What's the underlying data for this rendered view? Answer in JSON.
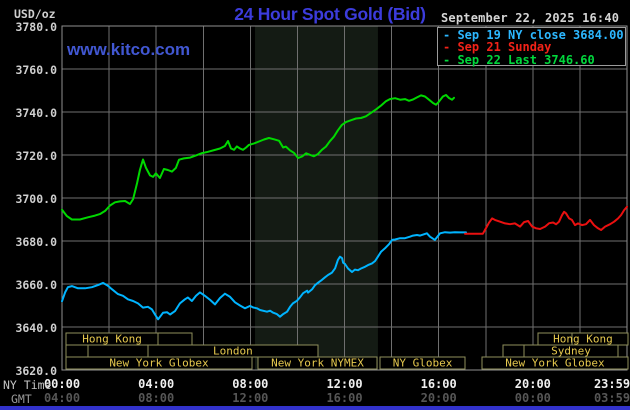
{
  "header": {
    "unit_label": "USD/oz",
    "title": "24 Hour Spot Gold (Bid)",
    "datetime": "September 22, 2025 16:40",
    "watermark": "www.kitco.com"
  },
  "legend": [
    {
      "marker": "-",
      "label": " Sep 19 NY close 3684.00",
      "color": "#2cb7ff"
    },
    {
      "marker": "-",
      "label": " Sep 21 Sunday",
      "color": "#f22218"
    },
    {
      "marker": "-",
      "label": " Sep 22 Last 3746.60",
      "color": "#00d83c"
    }
  ],
  "axes": {
    "ny_label": "NY Time",
    "gmt_label": "GMT",
    "y_ticks": [
      {
        "label": "3780.0",
        "value": 3780
      },
      {
        "label": "3760.0",
        "value": 3760
      },
      {
        "label": "3740.0",
        "value": 3740
      },
      {
        "label": "3720.0",
        "value": 3720
      },
      {
        "label": "3700.0",
        "value": 3700
      },
      {
        "label": "3680.0",
        "value": 3680
      },
      {
        "label": "3660.0",
        "value": 3660
      },
      {
        "label": "3640.0",
        "value": 3640
      },
      {
        "label": "3620.0",
        "value": 3620
      }
    ],
    "ny_ticks": [
      {
        "label": "00:00",
        "hour": 0
      },
      {
        "label": "04:00",
        "hour": 4
      },
      {
        "label": "08:00",
        "hour": 8
      },
      {
        "label": "12:00",
        "hour": 12
      },
      {
        "label": "16:00",
        "hour": 16
      },
      {
        "label": "20:00",
        "hour": 20
      },
      {
        "label": "23:59",
        "hour": 23.98
      }
    ],
    "gmt_ticks": [
      {
        "label": "04:00",
        "hour": 0
      },
      {
        "label": "08:00",
        "hour": 4
      },
      {
        "label": "12:00",
        "hour": 8
      },
      {
        "label": "16:00",
        "hour": 12
      },
      {
        "label": "20:00",
        "hour": 16
      },
      {
        "label": "00:00",
        "hour": 20
      },
      {
        "label": "03:59",
        "hour": 23.98
      }
    ]
  },
  "sessions": [
    {
      "row": 0,
      "label": "Hong Kong",
      "h0": 0.17,
      "h1": 4.08
    },
    {
      "row": 0,
      "label": "",
      "h0": 4.08,
      "h1": 5.52
    },
    {
      "row": 0,
      "label": "Hong Kong",
      "h0": 20.22,
      "h1": 24.04,
      "divider": 21.66
    },
    {
      "row": 1,
      "label": "",
      "h0": 0.17,
      "h1": 1.1
    },
    {
      "row": 1,
      "label": "",
      "h0": 1.1,
      "h1": 3.65
    },
    {
      "row": 1,
      "label": "London",
      "h0": 3.65,
      "h1": 10.87
    },
    {
      "row": 1,
      "label": "",
      "h0": 18.73,
      "h1": 19.62
    },
    {
      "row": 1,
      "label": "Sydney",
      "h0": 19.62,
      "h1": 23.62
    },
    {
      "row": 2,
      "label": "New York Globex",
      "h0": 0.17,
      "h1": 8.07
    },
    {
      "row": 2,
      "label": "New York NYMEX",
      "h0": 8.33,
      "h1": 13.38
    },
    {
      "row": 2,
      "label": "NY Globex",
      "h0": 13.51,
      "h1": 17.12
    },
    {
      "row": 2,
      "label": "New York Globex",
      "h0": 17.84,
      "h1": 24.04
    }
  ],
  "chart_data": {
    "type": "line",
    "title": "24 Hour Spot Gold (Bid)",
    "xlabel": "NY Time (hours)",
    "ylabel": "USD/oz",
    "x_range": [
      0,
      24
    ],
    "y_range": [
      3620,
      3780
    ],
    "grid": true,
    "legend_position": "top-right",
    "shaded_band_hours": [
      8.2,
      13.42
    ],
    "colors": {
      "grid": "#6f6f6f",
      "border": "#8f8f8f",
      "band": "#141b14",
      "session_border": "#8f8f5c",
      "session_text": "#e6c94e"
    },
    "series": [
      {
        "name": "Sep 19 NY close",
        "color": "#00b4ff",
        "points": [
          [
            0,
            3652
          ],
          [
            0.13,
            3656.1
          ],
          [
            0.25,
            3658.5
          ],
          [
            0.42,
            3659
          ],
          [
            0.68,
            3658
          ],
          [
            0.98,
            3658
          ],
          [
            1.27,
            3658.5
          ],
          [
            1.53,
            3659.5
          ],
          [
            1.74,
            3660.5
          ],
          [
            1.95,
            3659.2
          ],
          [
            2.12,
            3657.6
          ],
          [
            2.38,
            3655.3
          ],
          [
            2.59,
            3654.5
          ],
          [
            2.8,
            3652.9
          ],
          [
            3.02,
            3652.1
          ],
          [
            3.23,
            3651
          ],
          [
            3.44,
            3649
          ],
          [
            3.65,
            3649.4
          ],
          [
            3.82,
            3648.2
          ],
          [
            3.95,
            3645.8
          ],
          [
            4.08,
            3643.6
          ],
          [
            4.29,
            3646.6
          ],
          [
            4.46,
            3646.9
          ],
          [
            4.59,
            3645.8
          ],
          [
            4.8,
            3647.4
          ],
          [
            5.01,
            3651
          ],
          [
            5.22,
            3652.9
          ],
          [
            5.35,
            3653.7
          ],
          [
            5.52,
            3652.1
          ],
          [
            5.69,
            3654.5
          ],
          [
            5.86,
            3656.1
          ],
          [
            6.07,
            3654.5
          ],
          [
            6.29,
            3652.6
          ],
          [
            6.5,
            3650.5
          ],
          [
            6.71,
            3653.5
          ],
          [
            6.92,
            3655.5
          ],
          [
            7.14,
            3654
          ],
          [
            7.35,
            3651.5
          ],
          [
            7.56,
            3650
          ],
          [
            7.77,
            3648.7
          ],
          [
            7.99,
            3649.8
          ],
          [
            8.11,
            3649.1
          ],
          [
            8.28,
            3648.7
          ],
          [
            8.41,
            3647.9
          ],
          [
            8.71,
            3647.1
          ],
          [
            8.84,
            3647.6
          ],
          [
            8.96,
            3646.7
          ],
          [
            9.13,
            3646
          ],
          [
            9.26,
            3644.8
          ],
          [
            9.39,
            3646
          ],
          [
            9.56,
            3647.1
          ],
          [
            9.69,
            3649.4
          ],
          [
            9.81,
            3651
          ],
          [
            9.98,
            3652.2
          ],
          [
            10.11,
            3653.8
          ],
          [
            10.24,
            3655.7
          ],
          [
            10.41,
            3656.9
          ],
          [
            10.45,
            3656
          ],
          [
            10.62,
            3657.5
          ],
          [
            10.75,
            3659.5
          ],
          [
            10.88,
            3660.6
          ],
          [
            11.04,
            3661.9
          ],
          [
            11.17,
            3663.1
          ],
          [
            11.3,
            3664.2
          ],
          [
            11.47,
            3665.3
          ],
          [
            11.6,
            3667.3
          ],
          [
            11.72,
            3671.2
          ],
          [
            11.81,
            3672.7
          ],
          [
            11.9,
            3672
          ],
          [
            11.94,
            3669.9
          ],
          [
            12.02,
            3669.3
          ],
          [
            12.15,
            3667.2
          ],
          [
            12.32,
            3665.6
          ],
          [
            12.44,
            3666.7
          ],
          [
            12.57,
            3666.4
          ],
          [
            12.7,
            3667.2
          ],
          [
            12.87,
            3668
          ],
          [
            13,
            3668.8
          ],
          [
            13.17,
            3669.6
          ],
          [
            13.3,
            3670.7
          ],
          [
            13.42,
            3672.7
          ],
          [
            13.55,
            3675
          ],
          [
            13.72,
            3676.6
          ],
          [
            13.89,
            3678.5
          ],
          [
            14.02,
            3680.5
          ],
          [
            14.15,
            3680.7
          ],
          [
            14.36,
            3681.3
          ],
          [
            14.57,
            3681.3
          ],
          [
            14.78,
            3682
          ],
          [
            14.91,
            3682.5
          ],
          [
            15.08,
            3682.8
          ],
          [
            15.21,
            3682.5
          ],
          [
            15.5,
            3683.6
          ],
          [
            15.63,
            3682
          ],
          [
            15.84,
            3680.5
          ],
          [
            16.06,
            3683.6
          ],
          [
            16.27,
            3684.1
          ],
          [
            16.48,
            3683.9
          ],
          [
            16.69,
            3684.1
          ],
          [
            16.9,
            3684
          ],
          [
            17.16,
            3684
          ]
        ]
      },
      {
        "name": "Sep 21 Sunday",
        "color": "#ea1010",
        "points": [
          [
            17.12,
            3683.4
          ],
          [
            17.88,
            3683.4
          ],
          [
            18.01,
            3686
          ],
          [
            18.14,
            3688.5
          ],
          [
            18.27,
            3690.5
          ],
          [
            18.39,
            3689.8
          ],
          [
            18.61,
            3689
          ],
          [
            18.82,
            3688.2
          ],
          [
            19.03,
            3687.8
          ],
          [
            19.24,
            3688.2
          ],
          [
            19.46,
            3686.7
          ],
          [
            19.63,
            3688.8
          ],
          [
            19.8,
            3689.3
          ],
          [
            19.97,
            3686.7
          ],
          [
            20.14,
            3685.9
          ],
          [
            20.31,
            3685.6
          ],
          [
            20.52,
            3686.7
          ],
          [
            20.69,
            3688.3
          ],
          [
            20.86,
            3688.6
          ],
          [
            20.99,
            3687.8
          ],
          [
            21.11,
            3689
          ],
          [
            21.24,
            3692
          ],
          [
            21.33,
            3693.6
          ],
          [
            21.41,
            3692.9
          ],
          [
            21.54,
            3690.5
          ],
          [
            21.66,
            3689.8
          ],
          [
            21.79,
            3687.4
          ],
          [
            21.92,
            3688.2
          ],
          [
            22.09,
            3687.4
          ],
          [
            22.26,
            3687.8
          ],
          [
            22.43,
            3689.8
          ],
          [
            22.6,
            3687.4
          ],
          [
            22.77,
            3685.9
          ],
          [
            22.9,
            3685.1
          ],
          [
            23.07,
            3686.7
          ],
          [
            23.28,
            3687.8
          ],
          [
            23.45,
            3689
          ],
          [
            23.62,
            3690.5
          ],
          [
            23.75,
            3692.1
          ],
          [
            23.88,
            3694.4
          ],
          [
            24,
            3695.9
          ]
        ]
      },
      {
        "name": "Sep 22 Last",
        "color": "#00d800",
        "points": [
          [
            0,
            3694.5
          ],
          [
            0.21,
            3691.6
          ],
          [
            0.42,
            3690
          ],
          [
            0.76,
            3690
          ],
          [
            1.1,
            3691
          ],
          [
            1.4,
            3691.8
          ],
          [
            1.61,
            3692.5
          ],
          [
            1.83,
            3694
          ],
          [
            2.04,
            3696.5
          ],
          [
            2.25,
            3698
          ],
          [
            2.46,
            3698.4
          ],
          [
            2.68,
            3698.6
          ],
          [
            2.89,
            3697.2
          ],
          [
            3.02,
            3699.5
          ],
          [
            3.19,
            3707
          ],
          [
            3.31,
            3713
          ],
          [
            3.44,
            3717.9
          ],
          [
            3.57,
            3714
          ],
          [
            3.74,
            3710.5
          ],
          [
            3.87,
            3709.8
          ],
          [
            3.99,
            3711.5
          ],
          [
            4.16,
            3709.3
          ],
          [
            4.33,
            3713.5
          ],
          [
            4.5,
            3713
          ],
          [
            4.67,
            3712.3
          ],
          [
            4.84,
            3714
          ],
          [
            4.97,
            3717.8
          ],
          [
            5.18,
            3718.4
          ],
          [
            5.44,
            3718.8
          ],
          [
            5.69,
            3719.8
          ],
          [
            5.95,
            3720.9
          ],
          [
            6.2,
            3721.5
          ],
          [
            6.46,
            3722.3
          ],
          [
            6.71,
            3723
          ],
          [
            6.92,
            3724.2
          ],
          [
            7.05,
            3726.5
          ],
          [
            7.18,
            3723
          ],
          [
            7.31,
            3722.4
          ],
          [
            7.43,
            3724
          ],
          [
            7.56,
            3723
          ],
          [
            7.69,
            3722.4
          ],
          [
            7.82,
            3723.5
          ],
          [
            7.94,
            3724.7
          ],
          [
            8.16,
            3725.4
          ],
          [
            8.37,
            3726.3
          ],
          [
            8.58,
            3727.2
          ],
          [
            8.79,
            3727.9
          ],
          [
            9.01,
            3727.3
          ],
          [
            9.22,
            3726.6
          ],
          [
            9.39,
            3723.5
          ],
          [
            9.51,
            3723.9
          ],
          [
            9.68,
            3722.2
          ],
          [
            9.85,
            3721
          ],
          [
            10.03,
            3718.6
          ],
          [
            10.2,
            3719.3
          ],
          [
            10.37,
            3720.8
          ],
          [
            10.53,
            3720.1
          ],
          [
            10.7,
            3719.4
          ],
          [
            10.87,
            3720.4
          ],
          [
            11.04,
            3722.4
          ],
          [
            11.21,
            3723.9
          ],
          [
            11.38,
            3726.4
          ],
          [
            11.55,
            3728.5
          ],
          [
            11.72,
            3731.5
          ],
          [
            11.89,
            3734
          ],
          [
            12.06,
            3735.3
          ],
          [
            12.28,
            3736.2
          ],
          [
            12.49,
            3737
          ],
          [
            12.7,
            3737.2
          ],
          [
            12.91,
            3738
          ],
          [
            13.12,
            3739.6
          ],
          [
            13.34,
            3741.2
          ],
          [
            13.55,
            3743
          ],
          [
            13.76,
            3745
          ],
          [
            13.93,
            3746
          ],
          [
            14.15,
            3746.4
          ],
          [
            14.36,
            3745.7
          ],
          [
            14.57,
            3746
          ],
          [
            14.74,
            3745.2
          ],
          [
            14.91,
            3745.8
          ],
          [
            15.08,
            3746.8
          ],
          [
            15.25,
            3747.7
          ],
          [
            15.42,
            3747.2
          ],
          [
            15.59,
            3745.7
          ],
          [
            15.76,
            3744.2
          ],
          [
            15.89,
            3743.4
          ],
          [
            16.01,
            3744.8
          ],
          [
            16.18,
            3747.2
          ],
          [
            16.31,
            3747.9
          ],
          [
            16.44,
            3746.5
          ],
          [
            16.57,
            3745.7
          ],
          [
            16.65,
            3746.6
          ]
        ]
      }
    ]
  }
}
